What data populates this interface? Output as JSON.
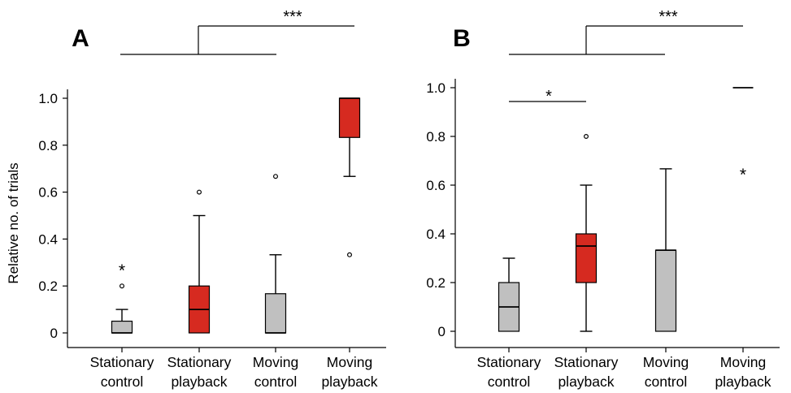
{
  "chart_data": [
    {
      "panel": "A",
      "type": "box",
      "ylabel": "Relative no. of trials",
      "ylim": [
        0,
        1
      ],
      "yticks": [
        "0",
        "0.2",
        "0.4",
        "0.6",
        "0.8",
        "1.0"
      ],
      "categories": [
        [
          "Stationary",
          "control"
        ],
        [
          "Stationary",
          "playback"
        ],
        [
          "Moving",
          "control"
        ],
        [
          "Moving",
          "playback"
        ]
      ],
      "boxes": [
        {
          "color": "#c0c0c0",
          "whisker_low": 0,
          "q1": 0,
          "median": 0,
          "q3": 0.05,
          "whisker_high": 0.1,
          "outliers": [
            0.2
          ],
          "extremes": [
            0.29
          ]
        },
        {
          "color": "#d62a20",
          "whisker_low": 0,
          "q1": 0,
          "median": 0.1,
          "q3": 0.2,
          "whisker_high": 0.5,
          "outliers": [
            0.6
          ],
          "extremes": []
        },
        {
          "color": "#c0c0c0",
          "whisker_low": 0,
          "q1": 0,
          "median": 0,
          "q3": 0.167,
          "whisker_high": 0.333,
          "outliers": [
            0.667
          ],
          "extremes": []
        },
        {
          "color": "#d62a20",
          "whisker_low": 0.667,
          "q1": 0.833,
          "median": 1.0,
          "q3": 1.0,
          "whisker_high": 1.0,
          "outliers": [
            0.333
          ],
          "extremes": []
        }
      ],
      "significance": [
        {
          "label": "***",
          "groups": [
            [
              0,
              2
            ],
            3
          ]
        }
      ]
    },
    {
      "panel": "B",
      "type": "box",
      "ylabel": "",
      "ylim": [
        0,
        1
      ],
      "yticks": [
        "0",
        "0.2",
        "0.4",
        "0.6",
        "0.8",
        "1.0"
      ],
      "categories": [
        [
          "Stationary",
          "control"
        ],
        [
          "Stationary",
          "playback"
        ],
        [
          "Moving",
          "control"
        ],
        [
          "Moving",
          "playback"
        ]
      ],
      "boxes": [
        {
          "color": "#c0c0c0",
          "whisker_low": 0,
          "q1": 0,
          "median": 0.1,
          "q3": 0.2,
          "whisker_high": 0.3,
          "outliers": [],
          "extremes": []
        },
        {
          "color": "#d62a20",
          "whisker_low": 0,
          "q1": 0.2,
          "median": 0.35,
          "q3": 0.4,
          "whisker_high": 0.6,
          "outliers": [
            0.8
          ],
          "extremes": []
        },
        {
          "color": "#c0c0c0",
          "whisker_low": 0,
          "q1": 0,
          "median": 0.333,
          "q3": 0.333,
          "whisker_high": 0.667,
          "outliers": [],
          "extremes": []
        },
        {
          "color": "#d62a20",
          "whisker_low": 1.0,
          "q1": 1.0,
          "median": 1.0,
          "q3": 1.0,
          "whisker_high": 1.0,
          "outliers": [],
          "extremes": [
            0.667
          ]
        }
      ],
      "significance": [
        {
          "label": "***",
          "groups": [
            [
              0,
              2
            ],
            3
          ]
        },
        {
          "label": "*",
          "groups": [
            0,
            1
          ]
        }
      ]
    }
  ]
}
